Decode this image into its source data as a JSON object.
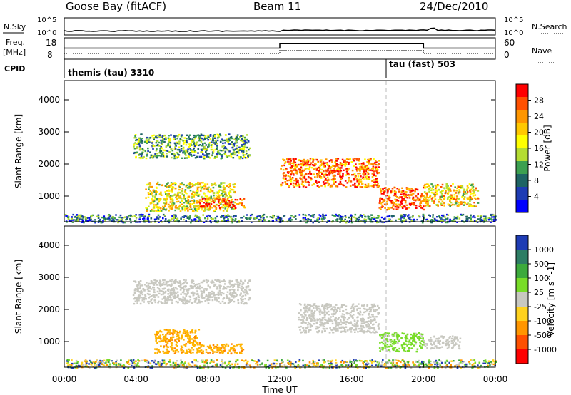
{
  "header": {
    "station": "Goose Bay (fitACF)",
    "beam": "Beam 11",
    "date": "24/Dec/2010"
  },
  "status_panel": {
    "nsky_label": "N.Sky",
    "nsearch_label": "N.Search",
    "freq_label": "Freq.",
    "freq_unit": "[MHz]",
    "nave_label": "Nave",
    "cpid_label": "CPID",
    "noise_ticks": [
      "10^5",
      "10^0"
    ],
    "freq_ticks": [
      "18",
      "8"
    ],
    "nave_ticks": [
      "60",
      "0"
    ],
    "cpid_segments": [
      {
        "name": "themis (tau) 3310",
        "start_hour": 0
      },
      {
        "name": "tau (fast) 503",
        "start_hour": 18
      }
    ],
    "freq_series": {
      "hours": [
        0,
        12,
        12,
        20,
        20,
        24
      ],
      "values": [
        10,
        10,
        14,
        14,
        10,
        10
      ]
    },
    "nave_series": {
      "hours": [
        0,
        12,
        12,
        20,
        20,
        24
      ],
      "values": [
        14,
        14,
        22,
        22,
        14,
        14
      ]
    }
  },
  "chart_data": [
    {
      "type": "heatmap",
      "name": "power",
      "ylabel": "Slant Range [km]",
      "ylim": [
        200,
        4600
      ],
      "yticks": [
        "1000",
        "2000",
        "3000",
        "4000"
      ],
      "xlim": [
        0,
        24
      ],
      "colorbar_label": "Power [dB]",
      "colorbar_ticks": [
        "28",
        "24",
        "20",
        "16",
        "12",
        "8",
        "4"
      ],
      "colorbar_colors": [
        "#ff0000",
        "#ff5000",
        "#ff9600",
        "#ffc800",
        "#ffff00",
        "#b4dc32",
        "#3ca050",
        "#1e6464",
        "#1e3cb4",
        "#0000ff"
      ],
      "regions": [
        {
          "hours": [
            3.8,
            10.3
          ],
          "range_km": [
            2200,
            2950
          ],
          "level": 0.35
        },
        {
          "hours": [
            4.5,
            9.5
          ],
          "range_km": [
            550,
            1450
          ],
          "level": 0.55
        },
        {
          "hours": [
            7.5,
            10.0
          ],
          "range_km": [
            650,
            950
          ],
          "level": 0.85
        },
        {
          "hours": [
            12.0,
            17.5
          ],
          "range_km": [
            1300,
            2200
          ],
          "level": 0.8
        },
        {
          "hours": [
            17.5,
            20.0
          ],
          "range_km": [
            600,
            1300
          ],
          "level": 0.85
        },
        {
          "hours": [
            20.0,
            23.0
          ],
          "range_km": [
            700,
            1400
          ],
          "level": 0.6
        },
        {
          "hours": [
            0,
            24
          ],
          "range_km": [
            200,
            450
          ],
          "level": 0.25
        }
      ]
    },
    {
      "type": "heatmap",
      "name": "velocity",
      "ylabel": "Slant Range [km]",
      "ylim": [
        200,
        4600
      ],
      "yticks": [
        "1000",
        "2000",
        "3000",
        "4000"
      ],
      "xlim": [
        0,
        24
      ],
      "colorbar_label": "Velocity [m s^-1]",
      "colorbar_ticks": [
        "1000",
        "500",
        "100",
        "25",
        "-25",
        "-100",
        "-500",
        "-1000"
      ],
      "colorbar_colors": [
        "#1e3cb4",
        "#2d7d64",
        "#3caa3c",
        "#78dc28",
        "#c8c8c0",
        "#ffd21e",
        "#ff9600",
        "#ff5000",
        "#ff0000"
      ],
      "regions": [
        {
          "hours": [
            3.8,
            10.3
          ],
          "range_km": [
            2200,
            2950
          ],
          "color": "gray"
        },
        {
          "hours": [
            5.0,
            7.5
          ],
          "range_km": [
            650,
            1400
          ],
          "color": "orange"
        },
        {
          "hours": [
            7.5,
            10.0
          ],
          "range_km": [
            650,
            950
          ],
          "color": "orange"
        },
        {
          "hours": [
            13.0,
            17.5
          ],
          "range_km": [
            1300,
            2200
          ],
          "color": "gray"
        },
        {
          "hours": [
            17.5,
            20.0
          ],
          "range_km": [
            700,
            1300
          ],
          "color": "green"
        },
        {
          "hours": [
            20.0,
            22.0
          ],
          "range_km": [
            800,
            1200
          ],
          "color": "gray"
        },
        {
          "hours": [
            0,
            24
          ],
          "range_km": [
            200,
            450
          ],
          "color": "mixed"
        }
      ]
    }
  ],
  "x_axis": {
    "ticks": [
      "00:00",
      "04:00",
      "08:00",
      "12:00",
      "16:00",
      "20:00",
      "00:00"
    ],
    "label": "Time UT"
  }
}
